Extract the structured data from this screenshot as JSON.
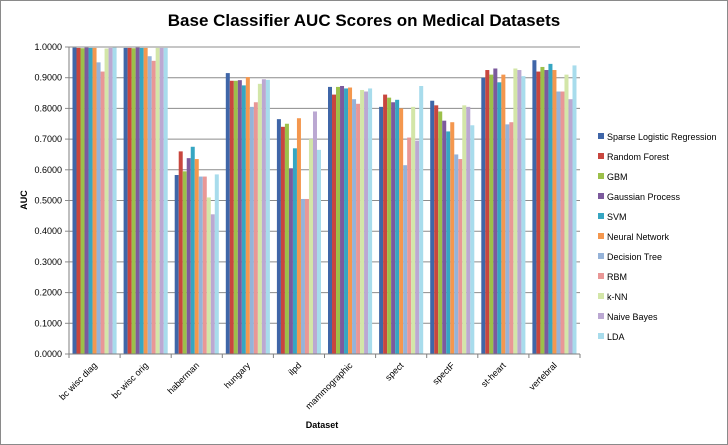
{
  "chart_data": {
    "type": "bar",
    "title": "Base Classifier AUC Scores on Medical Datasets",
    "xlabel": "Dataset",
    "ylabel": "AUC",
    "ylim": [
      0,
      1
    ],
    "yticks": [
      "0.0000",
      "0.1000",
      "0.2000",
      "0.3000",
      "0.4000",
      "0.5000",
      "0.6000",
      "0.7000",
      "0.8000",
      "0.9000",
      "1.0000"
    ],
    "grid": true,
    "legend_position": "right",
    "categories": [
      "bc wisc diag",
      "bc wisc orig",
      "haberman",
      "hungary",
      "ilpd",
      "mammographic",
      "spect",
      "spectF",
      "st-heart",
      "vertebral"
    ],
    "series": [
      {
        "name": "Sparse Logistic Regression",
        "color": "#3f66a8",
        "values": [
          0.998,
          0.997,
          0.583,
          0.915,
          0.765,
          0.87,
          0.805,
          0.825,
          0.9,
          0.957
        ]
      },
      {
        "name": "Random Forest",
        "color": "#c8463e",
        "values": [
          0.997,
          0.997,
          0.66,
          0.89,
          0.74,
          0.845,
          0.845,
          0.81,
          0.925,
          0.92
        ]
      },
      {
        "name": "GBM",
        "color": "#9cc04a",
        "values": [
          0.996,
          0.996,
          0.595,
          0.89,
          0.75,
          0.87,
          0.835,
          0.79,
          0.91,
          0.935
        ]
      },
      {
        "name": "Gaussian Process",
        "color": "#7c5a9d",
        "values": [
          0.998,
          0.998,
          0.638,
          0.892,
          0.605,
          0.873,
          0.82,
          0.76,
          0.93,
          0.925
        ]
      },
      {
        "name": "SVM",
        "color": "#36a6c2",
        "values": [
          0.997,
          0.997,
          0.675,
          0.875,
          0.67,
          0.865,
          0.828,
          0.725,
          0.885,
          0.945
        ]
      },
      {
        "name": "Neural Network",
        "color": "#f4974e",
        "values": [
          0.997,
          0.997,
          0.635,
          0.902,
          0.768,
          0.868,
          0.8,
          0.755,
          0.91,
          0.925
        ]
      },
      {
        "name": "Decision Tree",
        "color": "#95b3d9",
        "values": [
          0.95,
          0.97,
          0.578,
          0.805,
          0.505,
          0.83,
          0.615,
          0.65,
          0.748,
          0.855
        ]
      },
      {
        "name": "RBM",
        "color": "#e99796",
        "values": [
          0.92,
          0.955,
          0.578,
          0.82,
          0.505,
          0.815,
          0.705,
          0.635,
          0.755,
          0.855
        ]
      },
      {
        "name": "k-NN",
        "color": "#d3e6a8",
        "values": [
          0.995,
          0.997,
          0.51,
          0.88,
          0.7,
          0.86,
          0.805,
          0.81,
          0.93,
          0.91
        ]
      },
      {
        "name": "Naive Bayes",
        "color": "#bba8d2",
        "values": [
          0.997,
          0.997,
          0.455,
          0.895,
          0.79,
          0.855,
          0.695,
          0.805,
          0.925,
          0.83
        ]
      },
      {
        "name": "LDA",
        "color": "#a8dcec",
        "values": [
          0.998,
          0.997,
          0.585,
          0.893,
          0.665,
          0.865,
          0.873,
          0.745,
          0.905,
          0.94
        ]
      }
    ]
  }
}
